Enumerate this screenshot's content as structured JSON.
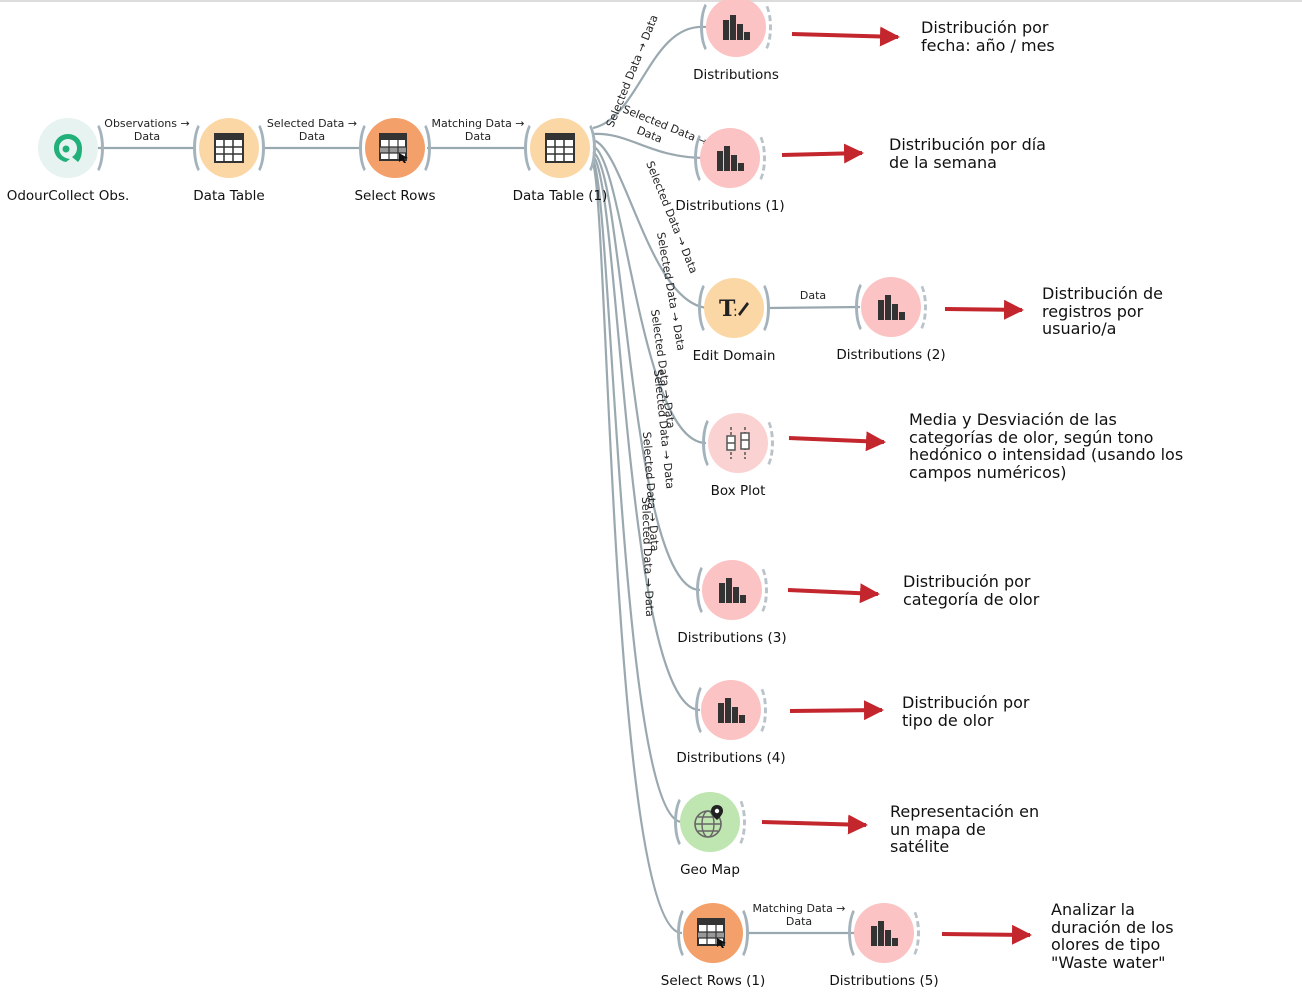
{
  "colors": {
    "link": "#9aa8b0",
    "arrow": "#c3262d",
    "data_node": "#fcd7a6",
    "viz_node": "#fbc3c3",
    "select_node": "#f4a06b",
    "geo_node": "#bfe5b0",
    "source_node": "#e6f3f1"
  },
  "nodes": {
    "odour": {
      "label": "OdourCollect Obs.",
      "icon": "odourcollect-icon"
    },
    "dt": {
      "label": "Data Table",
      "icon": "table-icon"
    },
    "sr": {
      "label": "Select Rows",
      "icon": "select-rows-icon"
    },
    "dt1": {
      "label": "Data Table (1)",
      "icon": "table-icon"
    },
    "dist": {
      "label": "Distributions",
      "icon": "histogram-icon"
    },
    "dist1": {
      "label": "Distributions (1)",
      "icon": "histogram-icon"
    },
    "edit": {
      "label": "Edit Domain",
      "icon": "edit-domain-icon"
    },
    "dist2": {
      "label": "Distributions (2)",
      "icon": "histogram-icon"
    },
    "box": {
      "label": "Box Plot",
      "icon": "box-plot-icon"
    },
    "dist3": {
      "label": "Distributions (3)",
      "icon": "histogram-icon"
    },
    "dist4": {
      "label": "Distributions (4)",
      "icon": "histogram-icon"
    },
    "geo": {
      "label": "Geo Map",
      "icon": "geo-map-icon"
    },
    "sr1": {
      "label": "Select Rows (1)",
      "icon": "select-rows-icon"
    },
    "dist5": {
      "label": "Distributions (5)",
      "icon": "histogram-icon"
    }
  },
  "links": {
    "odour_dt": [
      "Observations →",
      "Data"
    ],
    "dt_sr": [
      "Selected Data →",
      "Data"
    ],
    "sr_dt1": [
      "Matching Data →",
      "Data"
    ],
    "edit_dist2": "Data",
    "sr1_dist5": [
      "Matching Data →",
      "Data"
    ],
    "selected_data": "Selected Data → Data",
    "selected_data_1a": "Selected Data →",
    "selected_data_1b": "Data"
  },
  "annotations": {
    "a0": "Distribución por\nfecha: año / mes",
    "a1": "Distribución por día\nde la semana",
    "a2": "Distribución de\nregistros por\nusuario/a",
    "a3": "Media y Desviación de las\ncategorías de olor, según tono\nhedónico o intensidad (usando los\ncampos numéricos)",
    "a4": "Distribución por\ncategoría de olor",
    "a5": "Distribución por\ntipo de olor",
    "a6": "Representación en\nun mapa de\nsatélite",
    "a7": "Analizar la\nduración de los\nolores de tipo\n\"Waste water\""
  }
}
